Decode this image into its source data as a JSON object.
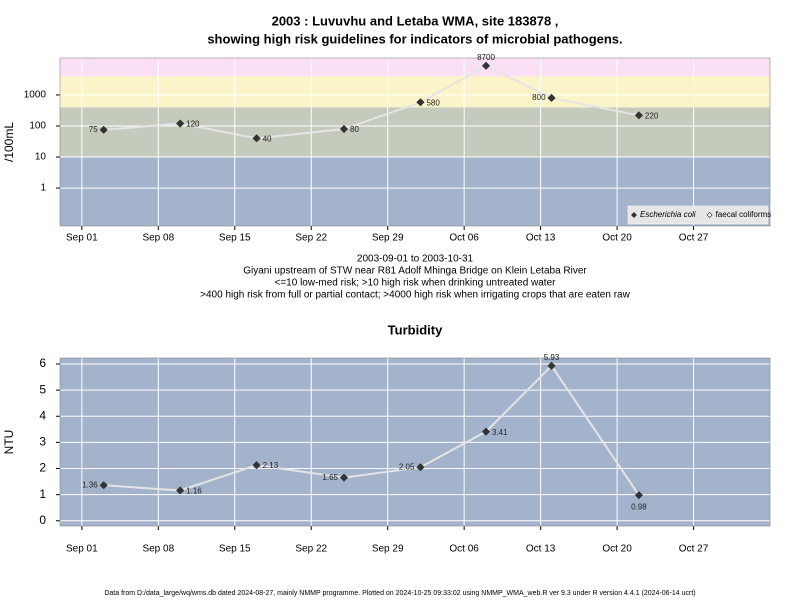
{
  "chart_data": [
    {
      "type": "line",
      "title": [
        "2003 : Luvuvhu and Letaba WMA, site 183878 ,",
        "showing high risk guidelines for indicators of microbial pathogens."
      ],
      "ylabel": "/100mL",
      "log_y": true,
      "x": [
        "Sep 03",
        "Sep 10",
        "Sep 17",
        "Sep 25",
        "Oct 02",
        "Oct 08",
        "Oct 14",
        "Oct 22"
      ],
      "xlim": [
        "Aug 30",
        "Nov 03"
      ],
      "xticks": [
        "Sep 01",
        "Sep 08",
        "Sep 15",
        "Sep 22",
        "Sep 29",
        "Oct 06",
        "Oct 13",
        "Oct 20",
        "Oct 27"
      ],
      "ylim": [
        0.06,
        15500
      ],
      "yticks": [
        1,
        10,
        100,
        1000
      ],
      "thresholds": [
        10,
        400,
        4000
      ],
      "band_colors": [
        "#a3b3cc",
        "#c4cbbd",
        "#fbf4c8",
        "#fbe0f5"
      ],
      "grid": true,
      "legend": "bottom-right",
      "series": [
        {
          "name": "Escherichia coli",
          "color": "#333333",
          "marker": "filled",
          "italic": true,
          "values": [
            75,
            120,
            40,
            80,
            580,
            8700,
            800,
            220
          ]
        },
        {
          "name": "faecal coliforms",
          "color": "#333333",
          "marker": "open",
          "italic": false,
          "values": [
            null,
            null,
            null,
            null,
            null,
            null,
            null,
            null
          ]
        }
      ],
      "subtitle": [
        "2003-09-01 to 2003-10-31",
        "Giyani upstream of STW near R81 Adolf Mhinga Bridge on Klein Letaba River",
        "<=10 low-med risk; >10 high risk when drinking untreated water",
        ">400 high risk from full or partial contact; >4000 high risk when irrigating crops that are eaten raw"
      ]
    },
    {
      "type": "line",
      "title": [
        "Turbidity"
      ],
      "ylabel": "NTU",
      "log_y": false,
      "x": [
        "Sep 03",
        "Sep 10",
        "Sep 17",
        "Sep 25",
        "Oct 02",
        "Oct 08",
        "Oct 14",
        "Oct 22"
      ],
      "xlim": [
        "Aug 30",
        "Nov 03"
      ],
      "xticks": [
        "Sep 01",
        "Sep 08",
        "Sep 15",
        "Sep 22",
        "Sep 29",
        "Oct 06",
        "Oct 13",
        "Oct 20",
        "Oct 27"
      ],
      "ylim": [
        -0.2,
        6.23
      ],
      "yticks": [
        0,
        1,
        2,
        3,
        4,
        5,
        6
      ],
      "band_colors": [
        "#a3b3cc"
      ],
      "grid": true,
      "series": [
        {
          "name": "Turbidity",
          "color": "#333333",
          "marker": "filled",
          "values": [
            1.36,
            1.16,
            2.13,
            1.65,
            2.05,
            3.41,
            5.93,
            0.98
          ]
        }
      ]
    }
  ],
  "footer": "Data from D:/data_large/wq/wms.db dated 2024-08-27, mainly NMMP programme. Plotted on 2024-10-25 09:33:02 using NMMP_WMA_web.R ver 9.3 under R version 4.4.1 (2024-06-14 ucrt)"
}
